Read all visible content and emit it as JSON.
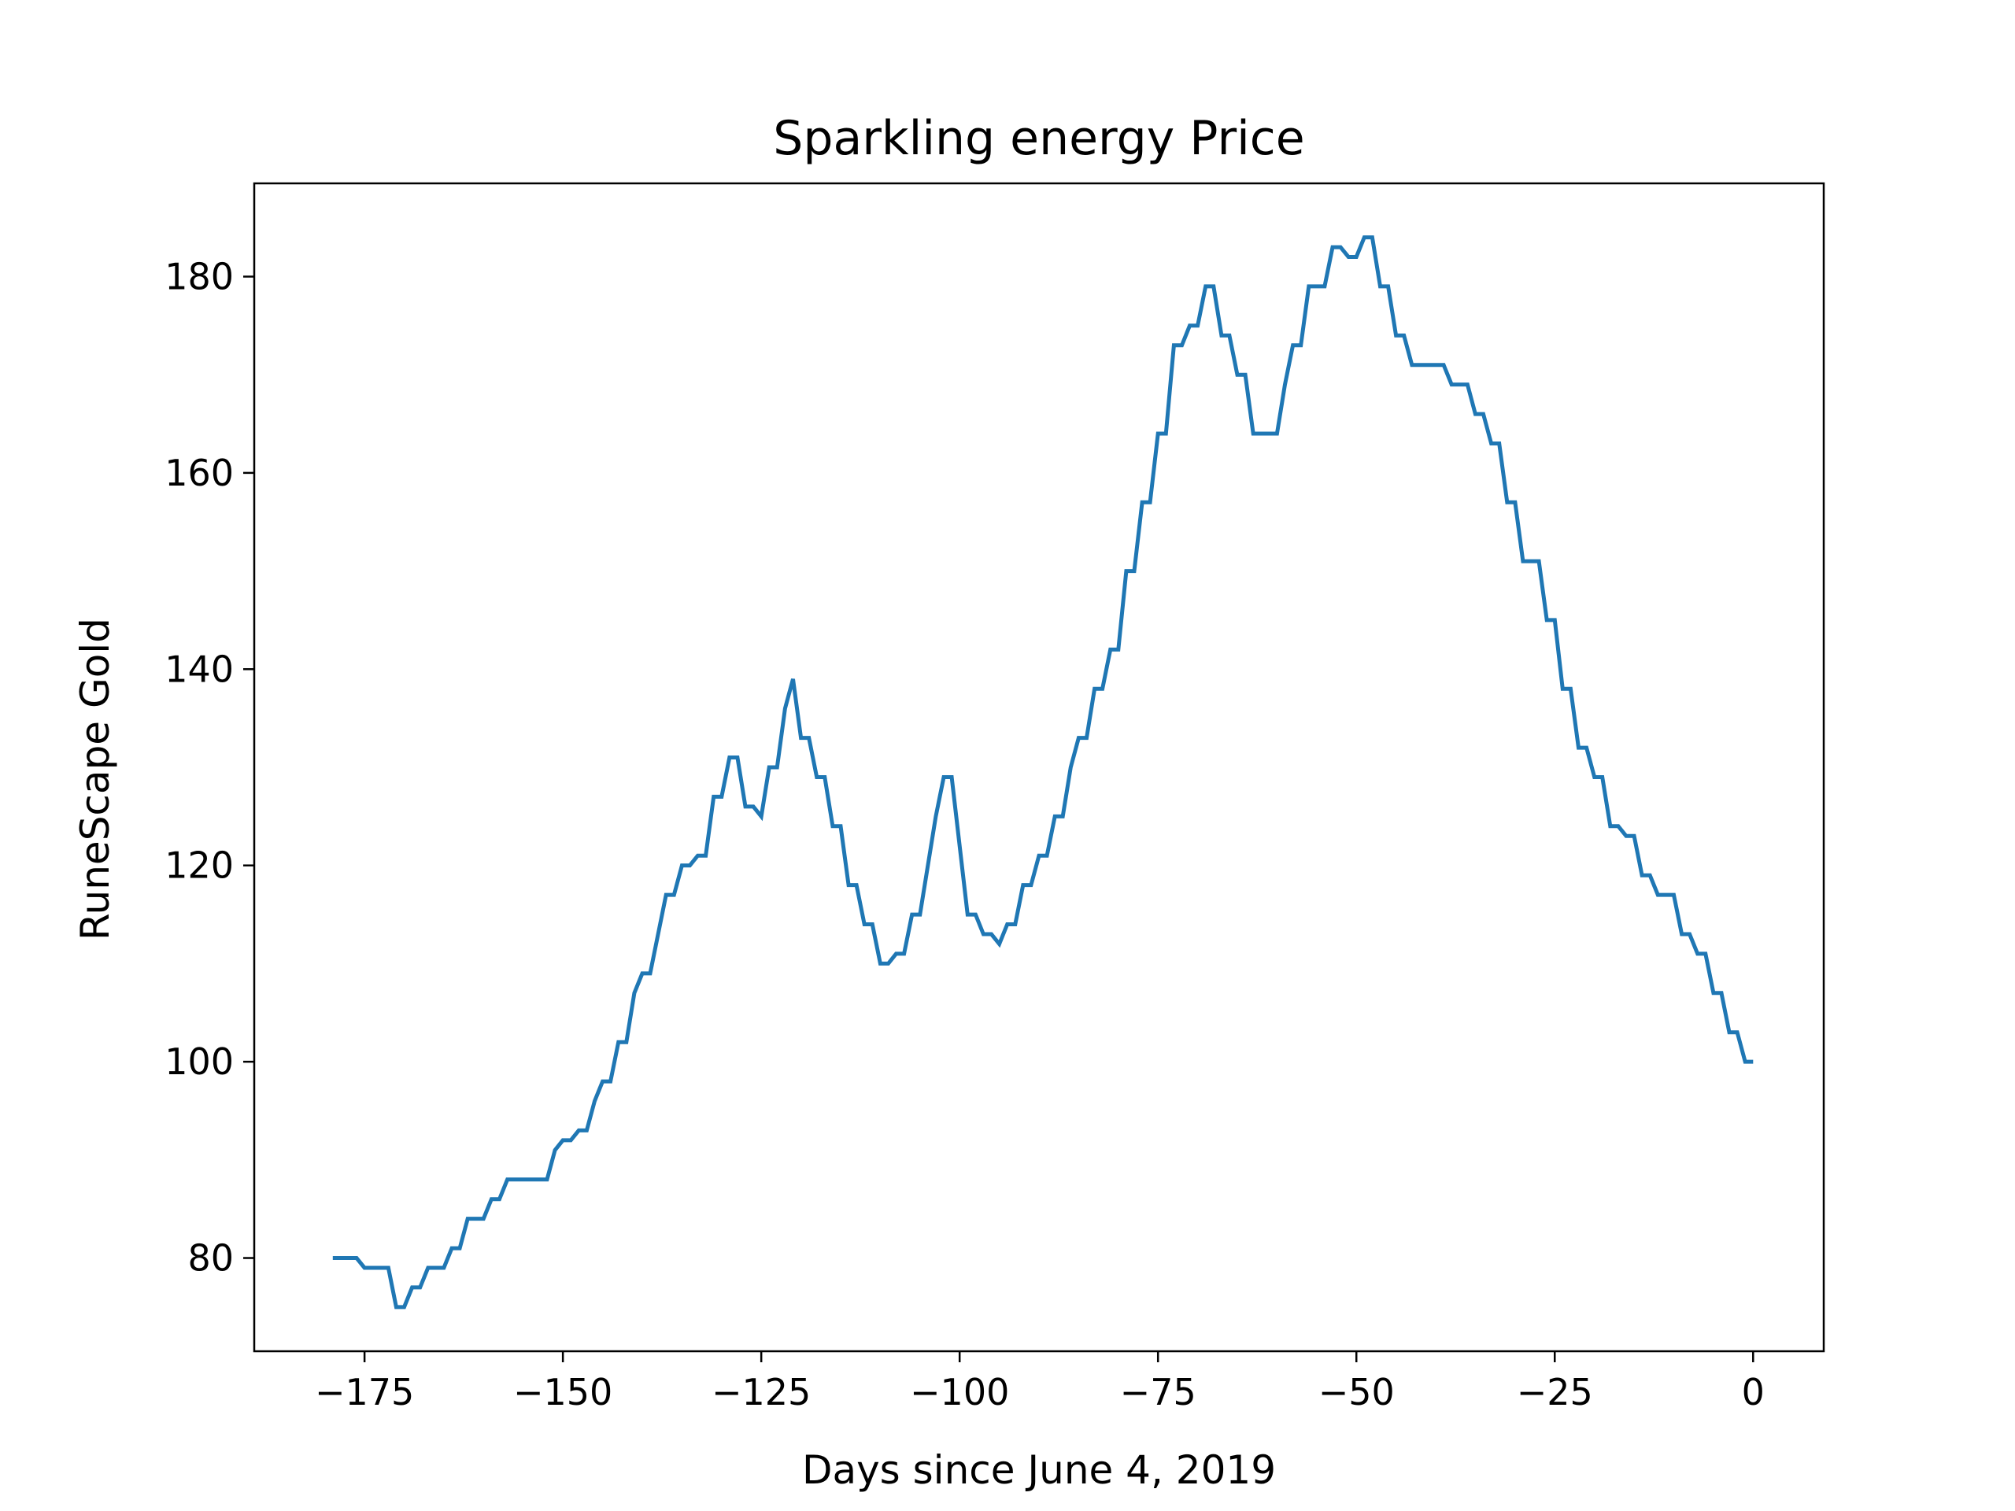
{
  "chart_data": {
    "type": "line",
    "title": "Sparkling energy Price",
    "xlabel": "Days since June 4, 2019",
    "ylabel": "RuneScape Gold",
    "xlim": [
      -188.9,
      8.9
    ],
    "ylim": [
      70.5,
      189.5
    ],
    "xticks": [
      -175,
      -150,
      -125,
      -100,
      -75,
      -50,
      -25,
      0
    ],
    "xtick_labels": [
      "−175",
      "−150",
      "−125",
      "−100",
      "−75",
      "−50",
      "−25",
      "0"
    ],
    "yticks": [
      80,
      100,
      120,
      140,
      160,
      180
    ],
    "ytick_labels": [
      "80",
      "100",
      "120",
      "140",
      "160",
      "180"
    ],
    "grid": false,
    "series_color": "#1f77b4",
    "series": [
      {
        "name": "",
        "points": [
          [
            -179,
            80
          ],
          [
            -176,
            80
          ],
          [
            -175,
            79
          ],
          [
            -172,
            79
          ],
          [
            -171,
            75
          ],
          [
            -170,
            75
          ],
          [
            -169,
            77
          ],
          [
            -168,
            77
          ],
          [
            -167,
            79
          ],
          [
            -165,
            79
          ],
          [
            -164,
            81
          ],
          [
            -163,
            81
          ],
          [
            -162,
            84
          ],
          [
            -160,
            84
          ],
          [
            -159,
            86
          ],
          [
            -158,
            86
          ],
          [
            -157,
            88
          ],
          [
            -152,
            88
          ],
          [
            -151,
            91
          ],
          [
            -150,
            92
          ],
          [
            -149,
            92
          ],
          [
            -148,
            93
          ],
          [
            -147,
            93
          ],
          [
            -146,
            96
          ],
          [
            -145,
            98
          ],
          [
            -144,
            98
          ],
          [
            -143,
            102
          ],
          [
            -142,
            102
          ],
          [
            -141,
            107
          ],
          [
            -140,
            109
          ],
          [
            -139,
            109
          ],
          [
            -137,
            117
          ],
          [
            -136,
            117
          ],
          [
            -135,
            120
          ],
          [
            -134,
            120
          ],
          [
            -133,
            121
          ],
          [
            -132,
            121
          ],
          [
            -131,
            127
          ],
          [
            -130,
            127
          ],
          [
            -129,
            131
          ],
          [
            -128,
            131
          ],
          [
            -127,
            126
          ],
          [
            -126,
            126
          ],
          [
            -125,
            125
          ],
          [
            -124,
            130
          ],
          [
            -123,
            130
          ],
          [
            -122,
            136
          ],
          [
            -121,
            139
          ],
          [
            -120,
            133
          ],
          [
            -119,
            133
          ],
          [
            -118,
            129
          ],
          [
            -117,
            129
          ],
          [
            -116,
            124
          ],
          [
            -115,
            124
          ],
          [
            -114,
            118
          ],
          [
            -113,
            118
          ],
          [
            -112,
            114
          ],
          [
            -111,
            114
          ],
          [
            -110,
            110
          ],
          [
            -109,
            110
          ],
          [
            -108,
            111
          ],
          [
            -107,
            111
          ],
          [
            -106,
            115
          ],
          [
            -105,
            115
          ],
          [
            -103,
            125
          ],
          [
            -102,
            129
          ],
          [
            -101,
            129
          ],
          [
            -99,
            115
          ],
          [
            -98,
            115
          ],
          [
            -97,
            113
          ],
          [
            -96,
            113
          ],
          [
            -95,
            112
          ],
          [
            -94,
            114
          ],
          [
            -93,
            114
          ],
          [
            -92,
            118
          ],
          [
            -91,
            118
          ],
          [
            -90,
            121
          ],
          [
            -89,
            121
          ],
          [
            -88,
            125
          ],
          [
            -87,
            125
          ],
          [
            -86,
            130
          ],
          [
            -85,
            133
          ],
          [
            -84,
            133
          ],
          [
            -83,
            138
          ],
          [
            -82,
            138
          ],
          [
            -81,
            142
          ],
          [
            -80,
            142
          ],
          [
            -79,
            150
          ],
          [
            -78,
            150
          ],
          [
            -77,
            157
          ],
          [
            -76,
            157
          ],
          [
            -75,
            164
          ],
          [
            -74,
            164
          ],
          [
            -73,
            173
          ],
          [
            -72,
            173
          ],
          [
            -71,
            175
          ],
          [
            -70,
            175
          ],
          [
            -69,
            179
          ],
          [
            -68,
            179
          ],
          [
            -67,
            174
          ],
          [
            -66,
            174
          ],
          [
            -65,
            170
          ],
          [
            -64,
            170
          ],
          [
            -63,
            164
          ],
          [
            -60,
            164
          ],
          [
            -59,
            169
          ],
          [
            -58,
            173
          ],
          [
            -57,
            173
          ],
          [
            -56,
            179
          ],
          [
            -54,
            179
          ],
          [
            -53,
            183
          ],
          [
            -52,
            183
          ],
          [
            -51,
            182
          ],
          [
            -50,
            182
          ],
          [
            -49,
            184
          ],
          [
            -48,
            184
          ],
          [
            -47,
            179
          ],
          [
            -46,
            179
          ],
          [
            -45,
            174
          ],
          [
            -44,
            174
          ],
          [
            -43,
            171
          ],
          [
            -39,
            171
          ],
          [
            -38,
            169
          ],
          [
            -36,
            169
          ],
          [
            -35,
            166
          ],
          [
            -34,
            166
          ],
          [
            -33,
            163
          ],
          [
            -32,
            163
          ],
          [
            -31,
            157
          ],
          [
            -30,
            157
          ],
          [
            -29,
            151
          ],
          [
            -27,
            151
          ],
          [
            -26,
            145
          ],
          [
            -25,
            145
          ],
          [
            -24,
            138
          ],
          [
            -23,
            138
          ],
          [
            -22,
            132
          ],
          [
            -21,
            132
          ],
          [
            -20,
            129
          ],
          [
            -19,
            129
          ],
          [
            -18,
            124
          ],
          [
            -17,
            124
          ],
          [
            -16,
            123
          ],
          [
            -15,
            123
          ],
          [
            -14,
            119
          ],
          [
            -13,
            119
          ],
          [
            -12,
            117
          ],
          [
            -10,
            117
          ],
          [
            -9,
            113
          ],
          [
            -8,
            113
          ],
          [
            -7,
            111
          ],
          [
            -6,
            111
          ],
          [
            -5,
            107
          ],
          [
            -4,
            107
          ],
          [
            -3,
            103
          ],
          [
            -2,
            103
          ],
          [
            -1,
            100
          ],
          [
            0,
            100
          ]
        ]
      }
    ]
  }
}
